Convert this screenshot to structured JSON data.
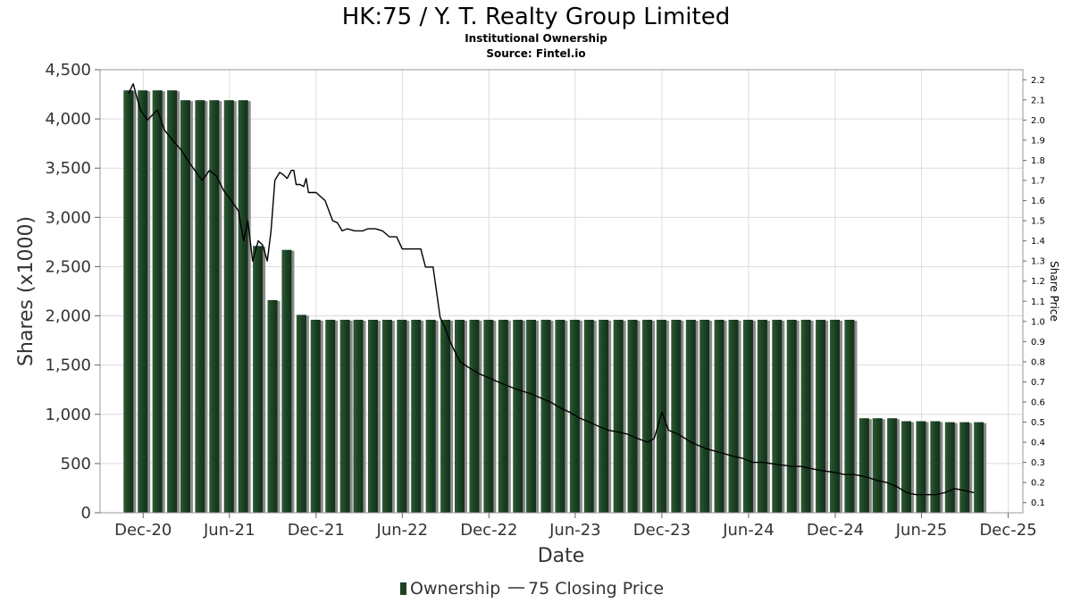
{
  "chart_data": {
    "type": "bar",
    "title": "HK:75 / Y. T. Realty Group Limited",
    "subtitle": "Institutional Ownership",
    "source": "Source: Fintel.io",
    "xlabel": "Date",
    "ylabel": "Shares (x1000)",
    "y2label": "Share Price",
    "ylim": [
      0,
      4500
    ],
    "y2lim": [
      0.05,
      2.25
    ],
    "yticks": [
      0,
      500,
      1000,
      1500,
      2000,
      2500,
      3000,
      3500,
      4000,
      4500
    ],
    "ytick_labels": [
      "0",
      "500",
      "1,000",
      "1,500",
      "2,000",
      "2,500",
      "3,000",
      "3,500",
      "4,000",
      "4,500"
    ],
    "y2ticks": [
      0.1,
      0.2,
      0.3,
      0.4,
      0.5,
      0.6,
      0.7,
      0.8,
      0.9,
      1.0,
      1.1,
      1.2,
      1.3,
      1.4,
      1.5,
      1.6,
      1.7,
      1.8,
      1.9,
      2.0,
      2.1,
      2.2
    ],
    "y2tick_labels": [
      "0.1",
      "0.2",
      "0.3",
      "0.4",
      "0.5",
      "0.6",
      "0.7",
      "0.8",
      "0.9",
      "1.0",
      "1.1",
      "1.2",
      "1.3",
      "1.4",
      "1.5",
      "1.6",
      "1.7",
      "1.8",
      "1.9",
      "2.0",
      "2.1",
      "2.2"
    ],
    "xlim": [
      "2020-09-01",
      "2026-01-01"
    ],
    "xticks": [
      "2020-12-01",
      "2021-06-01",
      "2021-12-01",
      "2022-06-01",
      "2022-12-01",
      "2023-06-01",
      "2023-12-01",
      "2024-06-01",
      "2024-12-01",
      "2025-06-01",
      "2025-12-01"
    ],
    "xtick_labels": [
      "Dec-20",
      "Jun-21",
      "Dec-21",
      "Jun-22",
      "Dec-22",
      "Jun-23",
      "Dec-23",
      "Jun-24",
      "Dec-24",
      "Jun-25",
      "Dec-25"
    ],
    "grid": true,
    "legend_position": "bottom",
    "bar_dates": [
      "2020-10-31",
      "2020-11-30",
      "2020-12-31",
      "2021-01-31",
      "2021-02-28",
      "2021-03-31",
      "2021-04-30",
      "2021-05-31",
      "2021-06-30",
      "2021-07-31",
      "2021-08-31",
      "2021-09-30",
      "2021-10-31",
      "2021-11-30",
      "2021-12-31",
      "2022-01-31",
      "2022-02-28",
      "2022-03-31",
      "2022-04-30",
      "2022-05-31",
      "2022-06-30",
      "2022-07-31",
      "2022-08-31",
      "2022-09-30",
      "2022-10-31",
      "2022-11-30",
      "2022-12-31",
      "2023-01-31",
      "2023-02-28",
      "2023-03-31",
      "2023-04-30",
      "2023-05-31",
      "2023-06-30",
      "2023-07-31",
      "2023-08-31",
      "2023-09-30",
      "2023-10-31",
      "2023-11-30",
      "2023-12-31",
      "2024-01-31",
      "2024-02-29",
      "2024-03-31",
      "2024-04-30",
      "2024-05-31",
      "2024-06-30",
      "2024-07-31",
      "2024-08-31",
      "2024-09-30",
      "2024-10-31",
      "2024-11-30",
      "2024-12-31",
      "2025-01-31",
      "2025-02-28",
      "2025-03-31",
      "2025-04-30",
      "2025-05-31",
      "2025-06-30",
      "2025-07-31",
      "2025-08-31",
      "2025-09-30"
    ],
    "series": [
      {
        "name": "Ownership",
        "type": "bar",
        "color": "#1b4223",
        "values": [
          4290,
          4290,
          4290,
          4290,
          4190,
          4190,
          4190,
          4190,
          4190,
          2710,
          2160,
          2670,
          2010,
          1960,
          1960,
          1960,
          1960,
          1960,
          1960,
          1960,
          1960,
          1960,
          1960,
          1960,
          1960,
          1960,
          1960,
          1960,
          1960,
          1960,
          1960,
          1960,
          1960,
          1960,
          1960,
          1960,
          1960,
          1960,
          1960,
          1960,
          1960,
          1960,
          1960,
          1960,
          1960,
          1960,
          1960,
          1960,
          1960,
          1960,
          1960,
          960,
          960,
          960,
          930,
          930,
          930,
          920,
          920,
          920
        ]
      },
      {
        "name": "75 Closing Price",
        "type": "line",
        "color": "#000000",
        "x": [
          "2020-10-31",
          "2020-11-10",
          "2020-11-25",
          "2020-12-10",
          "2020-12-31",
          "2021-01-15",
          "2021-02-01",
          "2021-02-20",
          "2021-03-05",
          "2021-03-20",
          "2021-04-05",
          "2021-04-20",
          "2021-05-05",
          "2021-05-20",
          "2021-06-05",
          "2021-06-20",
          "2021-07-01",
          "2021-07-10",
          "2021-07-20",
          "2021-08-01",
          "2021-08-10",
          "2021-08-20",
          "2021-08-28",
          "2021-09-05",
          "2021-09-15",
          "2021-09-22",
          "2021-10-01",
          "2021-10-10",
          "2021-10-15",
          "2021-10-20",
          "2021-10-28",
          "2021-11-05",
          "2021-11-10",
          "2021-11-15",
          "2021-11-22",
          "2021-12-01",
          "2021-12-20",
          "2022-01-05",
          "2022-01-15",
          "2022-01-25",
          "2022-02-05",
          "2022-02-20",
          "2022-03-01",
          "2022-03-10",
          "2022-03-20",
          "2022-04-05",
          "2022-04-20",
          "2022-05-05",
          "2022-05-20",
          "2022-06-01",
          "2022-06-20",
          "2022-07-10",
          "2022-07-20",
          "2022-08-05",
          "2022-08-20",
          "2022-08-28",
          "2022-09-10",
          "2022-09-20",
          "2022-10-01",
          "2022-10-20",
          "2022-11-10",
          "2022-12-01",
          "2022-12-20",
          "2023-01-10",
          "2023-02-01",
          "2023-03-01",
          "2023-03-20",
          "2023-04-10",
          "2023-05-01",
          "2023-05-20",
          "2023-06-10",
          "2023-07-01",
          "2023-07-20",
          "2023-08-10",
          "2023-09-01",
          "2023-09-20",
          "2023-10-10",
          "2023-11-01",
          "2023-11-15",
          "2023-12-01",
          "2023-12-15",
          "2024-01-05",
          "2024-02-01",
          "2024-03-01",
          "2024-04-01",
          "2024-05-01",
          "2024-05-20",
          "2024-06-10",
          "2024-07-01",
          "2024-08-01",
          "2024-09-01",
          "2024-09-20",
          "2024-10-10",
          "2024-11-01",
          "2024-12-01",
          "2024-12-20",
          "2025-01-10",
          "2025-02-01",
          "2025-03-01",
          "2025-03-20",
          "2025-04-10",
          "2025-05-01",
          "2025-05-20",
          "2025-06-10",
          "2025-07-01",
          "2025-07-20",
          "2025-08-10",
          "2025-09-01",
          "2025-09-20"
        ],
        "values": [
          2.13,
          2.18,
          2.05,
          2.0,
          2.05,
          1.95,
          1.9,
          1.85,
          1.8,
          1.75,
          1.7,
          1.75,
          1.72,
          1.65,
          1.6,
          1.55,
          1.4,
          1.5,
          1.3,
          1.4,
          1.38,
          1.3,
          1.45,
          1.7,
          1.74,
          1.73,
          1.71,
          1.75,
          1.75,
          1.68,
          1.68,
          1.67,
          1.71,
          1.64,
          1.64,
          1.64,
          1.6,
          1.5,
          1.49,
          1.45,
          1.46,
          1.45,
          1.45,
          1.45,
          1.46,
          1.46,
          1.45,
          1.42,
          1.42,
          1.36,
          1.36,
          1.36,
          1.27,
          1.27,
          1.02,
          0.98,
          0.9,
          0.85,
          0.8,
          0.77,
          0.74,
          0.72,
          0.7,
          0.68,
          0.66,
          0.64,
          0.62,
          0.6,
          0.57,
          0.55,
          0.52,
          0.5,
          0.48,
          0.46,
          0.45,
          0.44,
          0.42,
          0.4,
          0.42,
          0.55,
          0.46,
          0.44,
          0.4,
          0.37,
          0.35,
          0.33,
          0.32,
          0.3,
          0.3,
          0.29,
          0.28,
          0.28,
          0.27,
          0.26,
          0.25,
          0.24,
          0.24,
          0.23,
          0.21,
          0.2,
          0.18,
          0.15,
          0.14,
          0.14,
          0.14,
          0.15,
          0.17,
          0.16,
          0.15
        ]
      }
    ]
  }
}
